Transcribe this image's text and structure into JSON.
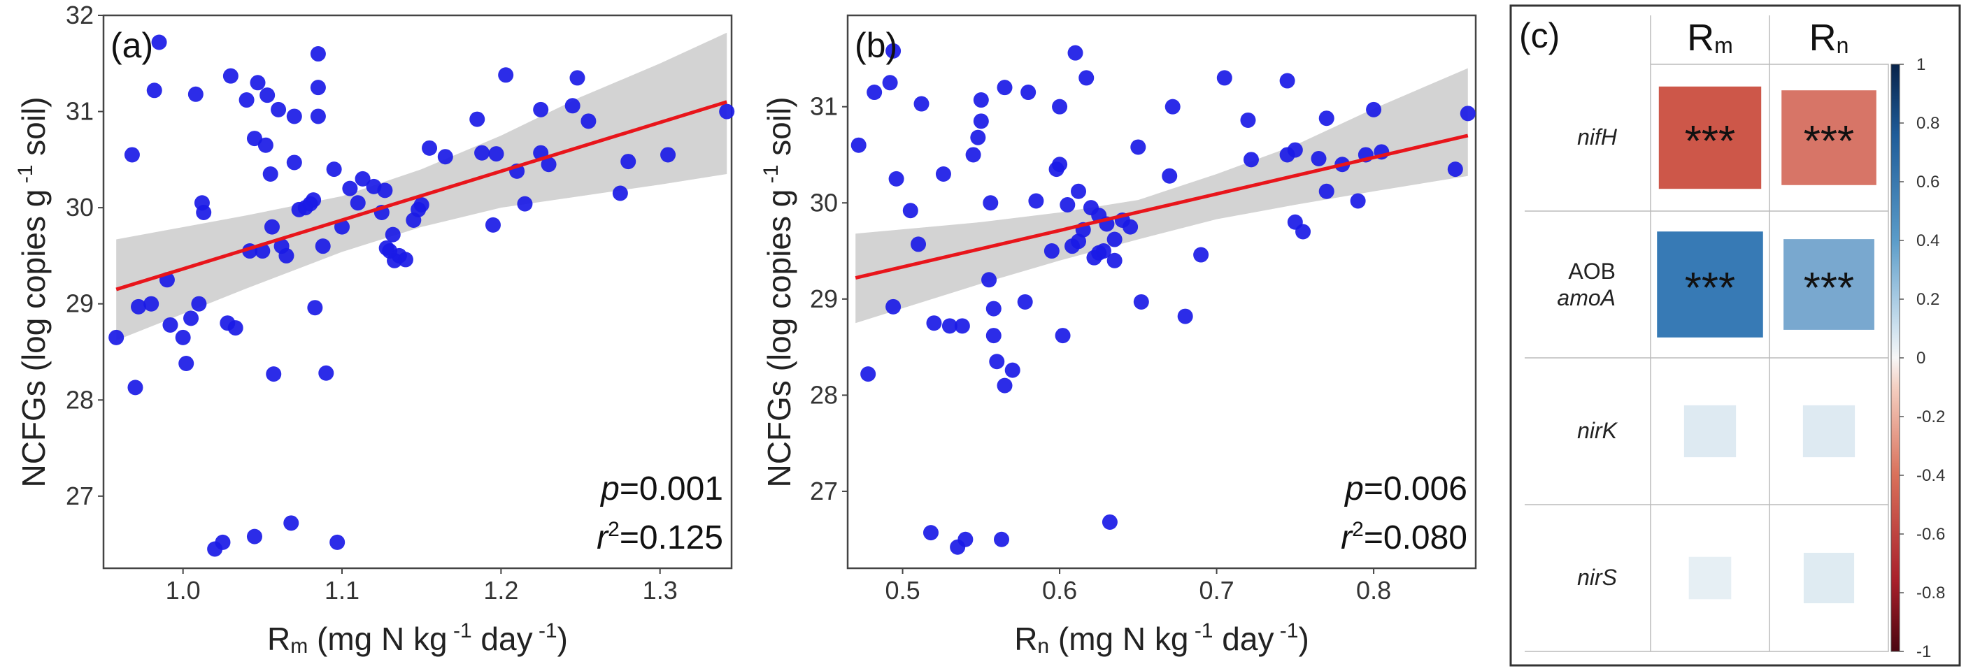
{
  "chart_data": [
    {
      "type": "scatter",
      "panel": "(a)",
      "xlabel_main": "R",
      "xlabel_sub": "m",
      "xlabel_rest": " (mg N kg",
      "xlabel_sup1": " -1",
      "xlabel_day": " day",
      "xlabel_sup2": " -1",
      "xlabel_close": ")",
      "ylabel": "NCFGs (log copies g",
      "ylabel_sup": " -1",
      "ylabel_rest": " soil)",
      "xlim": [
        0.95,
        1.345
      ],
      "ylim": [
        26.25,
        32.0
      ],
      "xticks": [
        1.0,
        1.1,
        1.2,
        1.3
      ],
      "xtick_labels": [
        "1.0",
        "1.1",
        "1.2",
        "1.3"
      ],
      "yticks": [
        27,
        28,
        29,
        30,
        31,
        32
      ],
      "ytick_labels": [
        "27",
        "28",
        "29",
        "30",
        "31",
        "32"
      ],
      "fit": {
        "x": [
          0.958,
          1.342
        ],
        "y": [
          29.15,
          31.1
        ]
      },
      "ci_upper": [
        [
          0.958,
          29.67
        ],
        [
          1.04,
          29.92
        ],
        [
          1.1,
          30.12
        ],
        [
          1.15,
          30.4
        ],
        [
          1.2,
          30.75
        ],
        [
          1.25,
          31.15
        ],
        [
          1.3,
          31.5
        ],
        [
          1.342,
          31.82
        ]
      ],
      "ci_lower": [
        [
          0.958,
          28.62
        ],
        [
          1.04,
          29.16
        ],
        [
          1.1,
          29.54
        ],
        [
          1.15,
          29.8
        ],
        [
          1.2,
          30.0
        ],
        [
          1.25,
          30.12
        ],
        [
          1.3,
          30.24
        ],
        [
          1.342,
          30.35
        ]
      ],
      "stat_p_label": "p",
      "stat_p_value": "=0.001",
      "stat_r_label": "r",
      "stat_r_sup": "2",
      "stat_r_value": "=0.125",
      "points": [
        [
          0.958,
          28.65
        ],
        [
          0.968,
          30.55
        ],
        [
          0.97,
          28.13
        ],
        [
          0.972,
          28.97
        ],
        [
          0.98,
          29.0
        ],
        [
          0.982,
          31.22
        ],
        [
          0.985,
          31.72
        ],
        [
          0.99,
          29.25
        ],
        [
          0.992,
          28.78
        ],
        [
          1.0,
          28.65
        ],
        [
          1.002,
          28.38
        ],
        [
          1.005,
          28.85
        ],
        [
          1.008,
          31.18
        ],
        [
          1.01,
          29.0
        ],
        [
          1.012,
          30.05
        ],
        [
          1.013,
          29.95
        ],
        [
          1.02,
          26.45
        ],
        [
          1.025,
          26.52
        ],
        [
          1.028,
          28.8
        ],
        [
          1.03,
          31.37
        ],
        [
          1.033,
          28.75
        ],
        [
          1.04,
          31.12
        ],
        [
          1.042,
          29.55
        ],
        [
          1.045,
          30.72
        ],
        [
          1.045,
          26.58
        ],
        [
          1.047,
          31.3
        ],
        [
          1.05,
          29.55
        ],
        [
          1.052,
          30.65
        ],
        [
          1.053,
          31.17
        ],
        [
          1.055,
          30.35
        ],
        [
          1.056,
          29.8
        ],
        [
          1.057,
          28.27
        ],
        [
          1.06,
          31.02
        ],
        [
          1.062,
          29.6
        ],
        [
          1.065,
          29.5
        ],
        [
          1.068,
          26.72
        ],
        [
          1.07,
          30.47
        ],
        [
          1.07,
          30.95
        ],
        [
          1.073,
          29.98
        ],
        [
          1.077,
          30.0
        ],
        [
          1.08,
          30.04
        ],
        [
          1.082,
          30.08
        ],
        [
          1.083,
          28.96
        ],
        [
          1.085,
          31.25
        ],
        [
          1.085,
          31.6
        ],
        [
          1.085,
          30.95
        ],
        [
          1.088,
          29.6
        ],
        [
          1.09,
          28.28
        ],
        [
          1.095,
          30.4
        ],
        [
          1.097,
          26.52
        ],
        [
          1.1,
          29.8
        ],
        [
          1.105,
          30.2
        ],
        [
          1.11,
          30.05
        ],
        [
          1.113,
          30.3
        ],
        [
          1.12,
          30.22
        ],
        [
          1.125,
          29.95
        ],
        [
          1.127,
          30.18
        ],
        [
          1.128,
          29.58
        ],
        [
          1.13,
          29.55
        ],
        [
          1.132,
          29.72
        ],
        [
          1.133,
          29.45
        ],
        [
          1.136,
          29.5
        ],
        [
          1.14,
          29.46
        ],
        [
          1.145,
          29.87
        ],
        [
          1.148,
          29.98
        ],
        [
          1.15,
          30.03
        ],
        [
          1.155,
          30.62
        ],
        [
          1.165,
          30.53
        ],
        [
          1.185,
          30.92
        ],
        [
          1.188,
          30.57
        ],
        [
          1.195,
          29.82
        ],
        [
          1.197,
          30.56
        ],
        [
          1.203,
          31.38
        ],
        [
          1.21,
          30.38
        ],
        [
          1.215,
          30.04
        ],
        [
          1.225,
          31.02
        ],
        [
          1.225,
          30.57
        ],
        [
          1.23,
          30.45
        ],
        [
          1.245,
          31.06
        ],
        [
          1.248,
          31.35
        ],
        [
          1.255,
          30.9
        ],
        [
          1.275,
          30.15
        ],
        [
          1.28,
          30.48
        ],
        [
          1.305,
          30.55
        ],
        [
          1.342,
          31.0
        ]
      ]
    },
    {
      "type": "scatter",
      "panel": "(b)",
      "xlabel_main": "R",
      "xlabel_sub": "n",
      "xlabel_rest": " (mg N kg",
      "xlabel_sup1": " -1",
      "xlabel_day": " day",
      "xlabel_sup2": " -1",
      "xlabel_close": ")",
      "ylabel": "NCFGs (log copies g",
      "ylabel_sup": " -1",
      "ylabel_rest": " soil)",
      "xlim": [
        0.465,
        0.865
      ],
      "ylim": [
        26.2,
        31.95
      ],
      "xticks": [
        0.5,
        0.6,
        0.7,
        0.8
      ],
      "xtick_labels": [
        "0.5",
        "0.6",
        "0.7",
        "0.8"
      ],
      "yticks": [
        27,
        28,
        29,
        30,
        31
      ],
      "ytick_labels": [
        "27",
        "28",
        "29",
        "30",
        "31"
      ],
      "fit": {
        "x": [
          0.47,
          0.86
        ],
        "y": [
          29.22,
          30.7
        ]
      },
      "ci_upper": [
        [
          0.47,
          29.68
        ],
        [
          0.55,
          29.8
        ],
        [
          0.6,
          29.9
        ],
        [
          0.65,
          30.03
        ],
        [
          0.7,
          30.3
        ],
        [
          0.75,
          30.6
        ],
        [
          0.8,
          30.98
        ],
        [
          0.86,
          31.4
        ]
      ],
      "ci_lower": [
        [
          0.47,
          28.75
        ],
        [
          0.55,
          29.16
        ],
        [
          0.6,
          29.4
        ],
        [
          0.65,
          29.62
        ],
        [
          0.7,
          29.83
        ],
        [
          0.75,
          29.98
        ],
        [
          0.8,
          30.12
        ],
        [
          0.86,
          30.28
        ]
      ],
      "stat_p_label": "p",
      "stat_p_value": "=0.006",
      "stat_r_label": "r",
      "stat_r_sup": "2",
      "stat_r_value": "=0.080",
      "points": [
        [
          0.472,
          30.6
        ],
        [
          0.478,
          28.22
        ],
        [
          0.482,
          31.15
        ],
        [
          0.492,
          31.25
        ],
        [
          0.494,
          28.92
        ],
        [
          0.494,
          31.58
        ],
        [
          0.496,
          30.25
        ],
        [
          0.505,
          29.92
        ],
        [
          0.51,
          29.57
        ],
        [
          0.512,
          31.03
        ],
        [
          0.518,
          26.57
        ],
        [
          0.52,
          28.75
        ],
        [
          0.526,
          30.3
        ],
        [
          0.53,
          28.72
        ],
        [
          0.535,
          26.42
        ],
        [
          0.538,
          28.72
        ],
        [
          0.54,
          26.5
        ],
        [
          0.545,
          30.5
        ],
        [
          0.548,
          30.68
        ],
        [
          0.55,
          30.85
        ],
        [
          0.55,
          31.07
        ],
        [
          0.555,
          29.2
        ],
        [
          0.556,
          30.0
        ],
        [
          0.558,
          28.62
        ],
        [
          0.558,
          28.9
        ],
        [
          0.56,
          28.35
        ],
        [
          0.563,
          26.5
        ],
        [
          0.565,
          28.1
        ],
        [
          0.565,
          31.2
        ],
        [
          0.57,
          28.26
        ],
        [
          0.578,
          28.97
        ],
        [
          0.58,
          31.15
        ],
        [
          0.585,
          30.02
        ],
        [
          0.595,
          29.5
        ],
        [
          0.598,
          30.35
        ],
        [
          0.6,
          31.0
        ],
        [
          0.6,
          30.4
        ],
        [
          0.602,
          28.62
        ],
        [
          0.605,
          29.98
        ],
        [
          0.608,
          29.55
        ],
        [
          0.61,
          31.56
        ],
        [
          0.612,
          29.6
        ],
        [
          0.612,
          30.12
        ],
        [
          0.615,
          29.72
        ],
        [
          0.617,
          31.3
        ],
        [
          0.62,
          29.95
        ],
        [
          0.622,
          29.43
        ],
        [
          0.625,
          29.48
        ],
        [
          0.625,
          29.87
        ],
        [
          0.628,
          29.5
        ],
        [
          0.63,
          29.78
        ],
        [
          0.632,
          26.68
        ],
        [
          0.635,
          29.62
        ],
        [
          0.635,
          29.4
        ],
        [
          0.64,
          29.82
        ],
        [
          0.645,
          29.75
        ],
        [
          0.65,
          30.58
        ],
        [
          0.652,
          28.97
        ],
        [
          0.67,
          30.28
        ],
        [
          0.672,
          31.0
        ],
        [
          0.68,
          28.82
        ],
        [
          0.69,
          29.46
        ],
        [
          0.705,
          31.3
        ],
        [
          0.72,
          30.86
        ],
        [
          0.722,
          30.45
        ],
        [
          0.745,
          31.27
        ],
        [
          0.745,
          30.5
        ],
        [
          0.75,
          30.55
        ],
        [
          0.75,
          29.8
        ],
        [
          0.755,
          29.7
        ],
        [
          0.765,
          30.46
        ],
        [
          0.77,
          30.88
        ],
        [
          0.77,
          30.12
        ],
        [
          0.78,
          30.4
        ],
        [
          0.79,
          30.02
        ],
        [
          0.795,
          30.5
        ],
        [
          0.8,
          30.97
        ],
        [
          0.805,
          30.53
        ],
        [
          0.852,
          30.35
        ],
        [
          0.86,
          30.93
        ]
      ]
    },
    {
      "type": "heatmap",
      "panel": "(c)",
      "columns": [
        {
          "main": "R",
          "sub": "m"
        },
        {
          "main": "R",
          "sub": "n"
        }
      ],
      "rows": [
        {
          "label": "nifH",
          "italic": true
        },
        {
          "label_top": "AOB",
          "label": "amoA",
          "italic": true
        },
        {
          "label": "nirK",
          "italic": true
        },
        {
          "label": "nirS",
          "italic": true
        }
      ],
      "values": [
        [
          -0.7,
          -0.6
        ],
        [
          0.75,
          0.55
        ],
        [
          0.18,
          0.18
        ],
        [
          0.12,
          0.17
        ]
      ],
      "significance": [
        [
          "***",
          "***"
        ],
        [
          "***",
          "***"
        ],
        [
          "",
          ""
        ],
        [
          "",
          ""
        ]
      ],
      "colorbar_ticks": [
        1,
        0.8,
        0.6,
        0.4,
        0.2,
        0,
        -0.2,
        -0.4,
        -0.6,
        -0.8,
        -1
      ],
      "colorbar_labels": [
        "1",
        "0.8",
        "0.6",
        "0.4",
        "0.2",
        "0",
        "-0.2",
        "-0.4",
        "-0.6",
        "-0.8",
        "-1"
      ],
      "colors": {
        "positive": "#2f76b2",
        "negative": "#c94c3c"
      }
    }
  ]
}
